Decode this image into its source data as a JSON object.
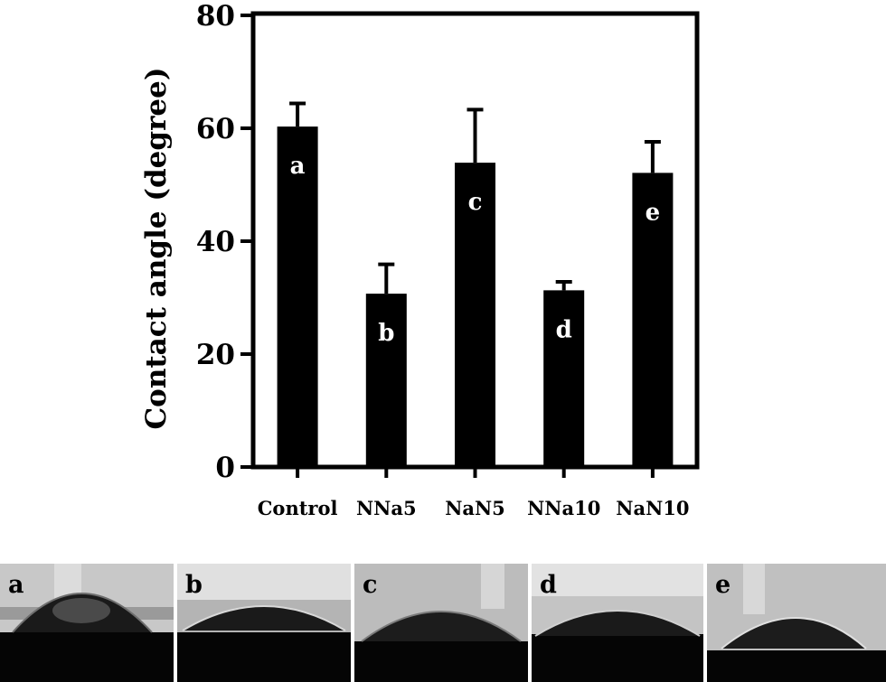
{
  "chart_data": {
    "type": "bar",
    "ylabel": "Contact angle (degree)",
    "xlabel": "",
    "ylim": [
      0,
      80
    ],
    "yticks": [
      "0",
      "20",
      "40",
      "60",
      "80"
    ],
    "grid": false,
    "categories": [
      "Control",
      "NNa5",
      "NaN5",
      "NNa10",
      "NaN10"
    ],
    "values": [
      60.3,
      30.7,
      53.9,
      31.3,
      52.1
    ],
    "errors": [
      4.1,
      5.2,
      9.4,
      1.5,
      5.5
    ],
    "bar_labels": [
      "a",
      "b",
      "c",
      "d",
      "e"
    ],
    "bar_color": "#000000"
  },
  "photos": [
    {
      "label": "a"
    },
    {
      "label": "b"
    },
    {
      "label": "c"
    },
    {
      "label": "d"
    },
    {
      "label": "e"
    }
  ]
}
